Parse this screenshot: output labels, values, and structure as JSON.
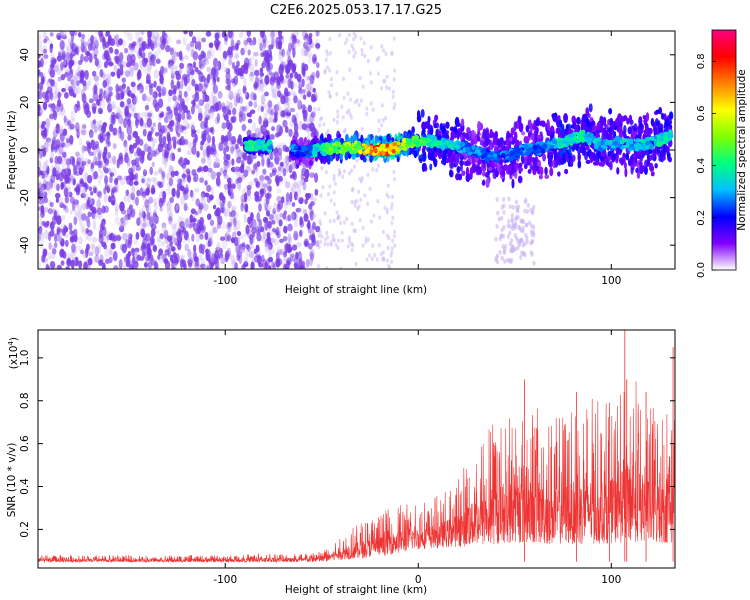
{
  "figure": {
    "title": "C2E6.2025.053.17.17.G25"
  },
  "chart_data": [
    {
      "type": "heatmap",
      "title": "C2E6.2025.053.17.17.G25",
      "xlabel": "Height of straight line (km)",
      "ylabel": "Frequency (Hz)",
      "xlim": [
        -197,
        133
      ],
      "ylim": [
        -50,
        50
      ],
      "xticks": [
        -100,
        0,
        100
      ],
      "xtick_labels": [
        "-100",
        "",
        "100"
      ],
      "yticks": [
        -40,
        -20,
        0,
        20,
        40
      ],
      "ytick_labels": [
        "-40",
        "-20",
        "0",
        "20",
        "40"
      ],
      "colorbar": {
        "label": "Normalized spectral amplitude",
        "range": [
          0,
          0.92
        ],
        "ticks": [
          0.0,
          0.2,
          0.4,
          0.6,
          0.8
        ],
        "tick_labels": [
          "0.0",
          "0.2",
          "0.4",
          "0.6",
          "0.8"
        ],
        "colormap": [
          "#ffffff",
          "#8000ff",
          "#0000ff",
          "#00c0ff",
          "#00ff80",
          "#80ff00",
          "#ffff00",
          "#ff8000",
          "#ff0000",
          "#ff0080"
        ]
      },
      "noise_region": {
        "x": [
          -197,
          -52
        ],
        "level": "low",
        "color": "#7a3ce6"
      },
      "band_segments": [
        {
          "x": -90,
          "y": 2,
          "amp": 0.45
        },
        {
          "x": -80,
          "y": 2,
          "amp": 0.4
        },
        {
          "x": -60,
          "y": -1,
          "amp": 0.25
        },
        {
          "x": -50,
          "y": 0,
          "amp": 0.45
        },
        {
          "x": -42,
          "y": 1,
          "amp": 0.55
        },
        {
          "x": -30,
          "y": 1,
          "amp": 0.6
        },
        {
          "x": -25,
          "y": 0,
          "amp": 0.85
        },
        {
          "x": -18,
          "y": 0,
          "amp": 0.8
        },
        {
          "x": -10,
          "y": 1,
          "amp": 0.7
        },
        {
          "x": -5,
          "y": 3,
          "amp": 0.55
        },
        {
          "x": 5,
          "y": 4,
          "amp": 0.45
        },
        {
          "x": 15,
          "y": 2,
          "amp": 0.4
        },
        {
          "x": 25,
          "y": 1,
          "amp": 0.3
        },
        {
          "x": 35,
          "y": -2,
          "amp": 0.3
        },
        {
          "x": 45,
          "y": -3,
          "amp": 0.3
        },
        {
          "x": 55,
          "y": 0,
          "amp": 0.3
        },
        {
          "x": 65,
          "y": 1,
          "amp": 0.3
        },
        {
          "x": 75,
          "y": 3,
          "amp": 0.45
        },
        {
          "x": 85,
          "y": 6,
          "amp": 0.4
        },
        {
          "x": 95,
          "y": 2,
          "amp": 0.35
        },
        {
          "x": 105,
          "y": 3,
          "amp": 0.35
        },
        {
          "x": 115,
          "y": 2,
          "amp": 0.35
        },
        {
          "x": 125,
          "y": 4,
          "amp": 0.4
        },
        {
          "x": 131,
          "y": 6,
          "amp": 0.4
        }
      ]
    },
    {
      "type": "line",
      "xlabel": "Height of straight line (km)",
      "ylabel": "SNR (10 * v/v)",
      "scale_note": "(x10",
      "scale_exp": "4",
      "scale_close": ")",
      "xlim": [
        -197,
        133
      ],
      "ylim": [
        0.02,
        1.13
      ],
      "xticks": [
        -100,
        0,
        100
      ],
      "xtick_labels": [
        "-100",
        "0",
        "100"
      ],
      "yticks": [
        0.2,
        0.4,
        0.6,
        0.8,
        1.0
      ],
      "ytick_labels": [
        "0.2",
        "0.4",
        "0.6",
        "0.8",
        "1.0"
      ],
      "series": [
        {
          "color": "#ee3333",
          "envelope_x": [
            -197,
            -150,
            -100,
            -80,
            -60,
            -50,
            -40,
            -30,
            -20,
            -10,
            0,
            10,
            20,
            30,
            40,
            50,
            60,
            70,
            80,
            90,
            100,
            110,
            120,
            133
          ],
          "envelope_base": [
            0.05,
            0.05,
            0.05,
            0.05,
            0.05,
            0.05,
            0.07,
            0.08,
            0.1,
            0.13,
            0.16,
            0.17,
            0.18,
            0.19,
            0.2,
            0.21,
            0.21,
            0.2,
            0.2,
            0.2,
            0.21,
            0.22,
            0.21,
            0.21
          ],
          "envelope_peak": [
            0.08,
            0.08,
            0.08,
            0.09,
            0.09,
            0.11,
            0.18,
            0.24,
            0.28,
            0.32,
            0.34,
            0.36,
            0.45,
            0.6,
            0.75,
            0.8,
            0.78,
            0.72,
            0.78,
            0.82,
            0.8,
            0.95,
            0.78,
            0.8
          ],
          "spikes": [
            {
              "x": 55,
              "y": 0.9
            },
            {
              "x": 82,
              "y": 0.84
            },
            {
              "x": 99,
              "y": 0.79
            },
            {
              "x": 107,
              "y": 1.13
            },
            {
              "x": 108,
              "y": 0.9
            },
            {
              "x": 118,
              "y": 0.84
            },
            {
              "x": 132,
              "y": 1.05
            }
          ]
        }
      ]
    }
  ]
}
